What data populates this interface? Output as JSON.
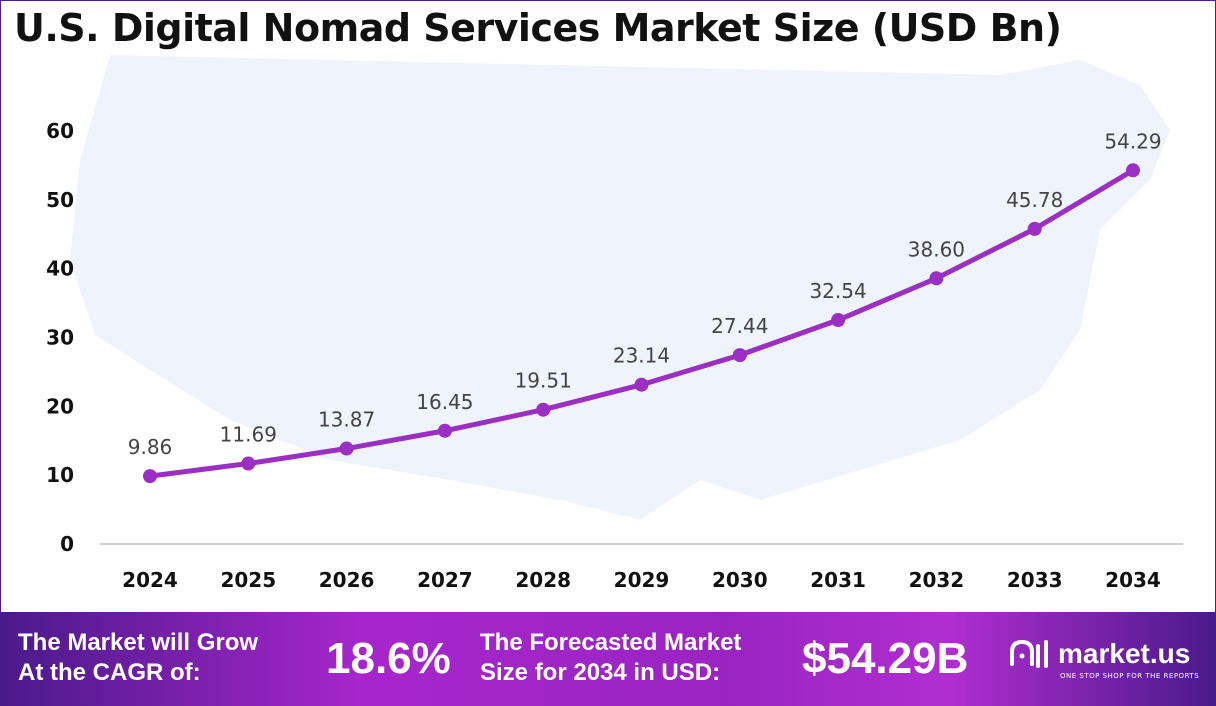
{
  "chart_data": {
    "type": "line",
    "title": "U.S. Digital Nomad Services Market Size (USD Bn)",
    "categories": [
      "2024",
      "2025",
      "2026",
      "2027",
      "2028",
      "2029",
      "2030",
      "2031",
      "2032",
      "2033",
      "2034"
    ],
    "values": [
      9.86,
      11.69,
      13.87,
      16.45,
      19.51,
      23.14,
      27.44,
      32.54,
      38.6,
      45.78,
      54.29
    ],
    "data_labels": [
      "9.86",
      "11.69",
      "13.87",
      "16.45",
      "19.51",
      "23.14",
      "27.44",
      "32.54",
      "38.60",
      "45.78",
      "54.29"
    ],
    "yticks": [
      "0",
      "10",
      "20",
      "30",
      "40",
      "50",
      "60"
    ],
    "ylim": [
      0,
      60
    ],
    "grid": false,
    "line_color": "#9b2fc4",
    "background": "U.S. map silhouette"
  },
  "banner": {
    "cagr_label_1": "The Market will Grow",
    "cagr_label_2": "At the CAGR of:",
    "cagr_value": "18.6%",
    "forecast_label_1": "The Forecasted Market",
    "forecast_label_2": "Size for 2034 in USD:",
    "forecast_value": "$54.29B",
    "logo_name": "market.us",
    "logo_tagline": "ONE STOP SHOP FOR THE REPORTS"
  }
}
